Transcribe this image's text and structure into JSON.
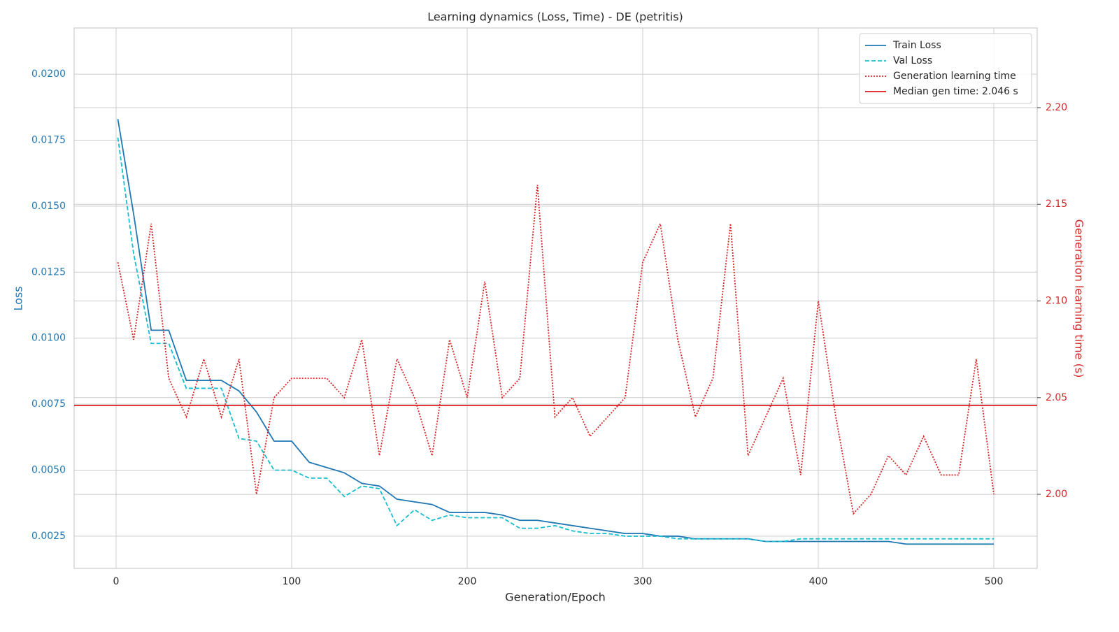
{
  "chart_data": {
    "type": "line",
    "title": "Learning dynamics (Loss, Time) - DE (petritis)",
    "x_label": "Generation/Epoch",
    "y_label": "Loss",
    "y2_label": "Generation learning time (s)",
    "y_color": "#1f77b4",
    "y2_color": "#d62728",
    "x": [
      1,
      10,
      20,
      30,
      40,
      50,
      60,
      70,
      80,
      90,
      100,
      110,
      120,
      130,
      140,
      150,
      160,
      170,
      180,
      190,
      200,
      210,
      220,
      230,
      240,
      250,
      260,
      270,
      280,
      290,
      300,
      310,
      320,
      330,
      340,
      350,
      360,
      370,
      380,
      390,
      400,
      410,
      420,
      430,
      440,
      450,
      460,
      470,
      480,
      490,
      500
    ],
    "series": [
      {
        "name": "Train Loss",
        "color": "#1f77b4",
        "dash": "solid",
        "values": [
          0.0183,
          0.0147,
          0.0103,
          0.0103,
          0.0084,
          0.0084,
          0.0084,
          0.008,
          0.0072,
          0.0061,
          0.0061,
          0.0053,
          0.0051,
          0.0049,
          0.0045,
          0.0044,
          0.0039,
          0.0038,
          0.0037,
          0.0034,
          0.0034,
          0.0034,
          0.0033,
          0.0031,
          0.0031,
          0.003,
          0.0029,
          0.0028,
          0.0027,
          0.0026,
          0.0026,
          0.0025,
          0.0025,
          0.0024,
          0.0024,
          0.0024,
          0.0024,
          0.0023,
          0.0023,
          0.0023,
          0.0023,
          0.0023,
          0.0023,
          0.0023,
          0.0023,
          0.0022,
          0.0022,
          0.0022,
          0.0022,
          0.0022,
          0.0022
        ]
      },
      {
        "name": "Val Loss",
        "color": "#17becf",
        "dash": "dashed",
        "values": [
          0.0176,
          0.0132,
          0.0098,
          0.0098,
          0.0081,
          0.0081,
          0.0081,
          0.0062,
          0.0061,
          0.005,
          0.005,
          0.0047,
          0.0047,
          0.004,
          0.0044,
          0.0043,
          0.0029,
          0.0035,
          0.0031,
          0.0033,
          0.0032,
          0.0032,
          0.0032,
          0.0028,
          0.0028,
          0.0029,
          0.0027,
          0.0026,
          0.0026,
          0.0025,
          0.0025,
          0.0025,
          0.0024,
          0.0024,
          0.0024,
          0.0024,
          0.0024,
          0.0023,
          0.0023,
          0.0024,
          0.0024,
          0.0024,
          0.0024,
          0.0024,
          0.0024,
          0.0024,
          0.0024,
          0.0024,
          0.0024,
          0.0024,
          0.0024
        ]
      },
      {
        "name": "Generation learning time",
        "color": "#d62728",
        "dash": "dotted",
        "axis": "y2",
        "values": [
          2.12,
          2.08,
          2.14,
          2.06,
          2.04,
          2.07,
          2.04,
          2.07,
          2.0,
          2.05,
          2.06,
          2.06,
          2.06,
          2.05,
          2.08,
          2.02,
          2.07,
          2.05,
          2.02,
          2.08,
          2.05,
          2.11,
          2.05,
          2.06,
          2.16,
          2.04,
          2.05,
          2.03,
          2.04,
          2.05,
          2.12,
          2.14,
          2.08,
          2.04,
          2.06,
          2.14,
          2.02,
          2.04,
          2.06,
          2.01,
          2.1,
          2.04,
          1.99,
          2.0,
          2.02,
          2.01,
          2.03,
          2.01,
          2.01,
          2.07,
          2.0
        ]
      }
    ],
    "median": {
      "name": "Median gen time: 2.046 s",
      "value": 2.046,
      "color": "#e31a1c"
    },
    "xlim": [
      -23.9,
      524.7
    ],
    "xticks": [
      0,
      100,
      200,
      300,
      400,
      500
    ],
    "ylim": [
      0.00128,
      0.02175
    ],
    "yticks": [
      {
        "value": 0.0025,
        "label": "0.0025"
      },
      {
        "value": 0.005,
        "label": "0.0050"
      },
      {
        "value": 0.0075,
        "label": "0.0075"
      },
      {
        "value": 0.01,
        "label": "0.0100"
      },
      {
        "value": 0.0125,
        "label": "0.0125"
      },
      {
        "value": 0.015,
        "label": "0.0150"
      },
      {
        "value": 0.0175,
        "label": "0.0175"
      },
      {
        "value": 0.02,
        "label": "0.0200"
      }
    ],
    "y2lim": [
      1.9617,
      2.2412
    ],
    "y2ticks": [
      {
        "value": 2.0,
        "label": "2.00"
      },
      {
        "value": 2.05,
        "label": "2.05"
      },
      {
        "value": 2.1,
        "label": "2.10"
      },
      {
        "value": 2.15,
        "label": "2.15"
      },
      {
        "value": 2.2,
        "label": "2.20"
      }
    ],
    "grid": true,
    "legend": "upper right"
  }
}
